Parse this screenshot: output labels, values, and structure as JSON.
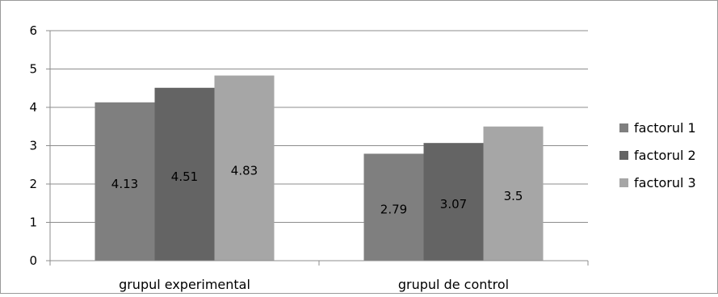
{
  "chart_data": {
    "type": "bar",
    "categories": [
      "grupul experimental",
      "grupul de control"
    ],
    "series": [
      {
        "name": "factorul 1",
        "values": [
          4.13,
          2.79
        ],
        "color": "#7f7f7f"
      },
      {
        "name": "factorul 2",
        "values": [
          4.51,
          3.07
        ],
        "color": "#646464"
      },
      {
        "name": "factorul 3",
        "values": [
          4.83,
          3.5
        ],
        "color": "#a6a6a6"
      }
    ],
    "data_labels": [
      [
        "4.13",
        "2.79"
      ],
      [
        "4.51",
        "3.07"
      ],
      [
        "4.83",
        "3.5"
      ]
    ],
    "yticks": [
      "0",
      "1",
      "2",
      "3",
      "4",
      "5",
      "6"
    ],
    "ylim": [
      0,
      6
    ],
    "title": "",
    "xlabel": "",
    "ylabel": "",
    "grid": true,
    "legend": "right",
    "colors": {
      "gridline": "#8c8c8c",
      "axis": "#8c8c8c"
    }
  }
}
